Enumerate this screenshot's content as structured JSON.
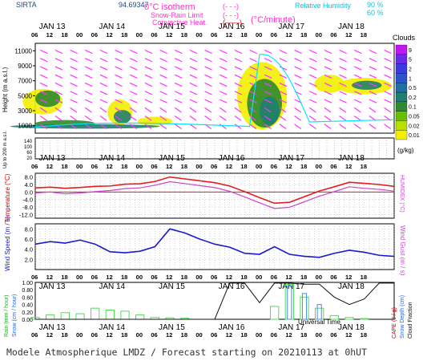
{
  "header": {
    "site": "SIRTA",
    "coords": "94.69347",
    "isotherm_label": "0°C isotherm",
    "isotherm_key": "(- - -)",
    "snow_rain_label": "Snow-Rain Limit",
    "snow_rain_key": "(- - -)",
    "convective_label": "Convective Heat.",
    "convective_key": "(——)",
    "convective_unit": "(°C/minute)",
    "rh_label": "Relative Humidity",
    "rh_90": "90 %",
    "rh_60": "60 %"
  },
  "footer": {
    "title": "Modele Atmospherique LMDZ / Forecast starting on 20210113 at 0hUT",
    "xaxis_title": "Universal Time"
  },
  "colors": {
    "cloud_yellow": "#f2f000",
    "cloud_green": "#2e8a2e",
    "cloud_teal": "#1f7f6e",
    "wind_arrow": "#ff33ff",
    "rh_line": "#00e5ff",
    "temp_line": "#e02020",
    "humidex_line": "#cc44cc",
    "wind_line": "#1a1acc",
    "rain_bar": "#55dd55",
    "snow_bar": "#4488ff",
    "cape_line": "#111111"
  },
  "chart_data": [
    {
      "type": "heatmap",
      "name": "clouds",
      "ylabel": "Height (m a.s.l.)",
      "ylabel2": "Up to 200 m a.s.l.",
      "yticks": [
        1000,
        3000,
        5000,
        7000,
        9000,
        11000
      ],
      "ylim": [
        0,
        12000
      ],
      "colorbar_title": "Clouds",
      "colorbar_unit": "(g/kg)",
      "colorbar_ticks": [
        "0.01",
        "0.02",
        "0.05",
        "0.1",
        "0.2",
        "0.5",
        "1",
        "2",
        "5",
        "9"
      ],
      "colorbar_colors": [
        "#f2f000",
        "#b7e000",
        "#67c000",
        "#2e8a2e",
        "#1f7f6e",
        "#1f6fa0",
        "#2a54c8",
        "#3a3ae0",
        "#6a2ae8",
        "#c018f0"
      ],
      "day_labels": [
        "JAN 13",
        "JAN 14",
        "JAN 15",
        "JAN 16",
        "JAN 17",
        "JAN 18"
      ],
      "hour_labels": [
        "06",
        "12",
        "18",
        "00",
        "06",
        "12",
        "18",
        "00",
        "06",
        "12",
        "18",
        "00",
        "06",
        "12",
        "18",
        "00",
        "06",
        "12",
        "18",
        "00",
        "06",
        "12",
        "18"
      ],
      "low_yticks": [
        "140",
        "100",
        "60",
        "20"
      ]
    },
    {
      "type": "line",
      "name": "temperature",
      "ylabel": "Temperature (°C)",
      "ylabel_right": "HUMIDEX (°C)",
      "yticks": [
        "8.0",
        "4.0",
        "0.0",
        "-4.0",
        "-8.0",
        "-12.0"
      ],
      "ylim": [
        -14,
        10
      ],
      "x": [
        0,
        6,
        12,
        18,
        24,
        30,
        36,
        42,
        48,
        54,
        60,
        66,
        72,
        78,
        84,
        90,
        96,
        102,
        108,
        114,
        120,
        126,
        132,
        138,
        144
      ],
      "series": [
        {
          "values": [
            2.2,
            2.6,
            2.0,
            2.4,
            3.0,
            3.2,
            4.2,
            4.4,
            5.6,
            8.0,
            7.0,
            6.0,
            5.0,
            3.2,
            0.2,
            -3.0,
            -6.0,
            -5.5,
            -2.5,
            0.5,
            2.8,
            5.2,
            4.6,
            4.0,
            3.0
          ]
        },
        {
          "values": [
            -0.5,
            0.0,
            -1.0,
            -0.5,
            0.2,
            0.8,
            1.8,
            2.2,
            3.6,
            5.5,
            4.5,
            3.4,
            2.4,
            0.4,
            -2.6,
            -5.8,
            -8.8,
            -8.2,
            -5.2,
            -2.2,
            0.2,
            2.8,
            2.0,
            1.4,
            0.5
          ]
        }
      ]
    },
    {
      "type": "line",
      "name": "wind",
      "ylabel": "Wind Speed (m / s)",
      "ylabel_right": "Wind Gust (m / s)",
      "yticks": [
        "8.0",
        "6.0",
        "4.0",
        "2.0"
      ],
      "ylim": [
        0,
        9
      ],
      "x": [
        0,
        6,
        12,
        18,
        24,
        30,
        36,
        42,
        48,
        54,
        60,
        66,
        72,
        78,
        84,
        90,
        96,
        102,
        108,
        114,
        120,
        126,
        132,
        138,
        144
      ],
      "series": [
        {
          "values": [
            5.0,
            5.5,
            5.2,
            5.8,
            5.0,
            3.5,
            3.3,
            3.6,
            4.5,
            8.0,
            7.2,
            6.0,
            5.0,
            4.4,
            3.2,
            3.0,
            4.5,
            3.0,
            2.6,
            2.4,
            3.2,
            3.8,
            3.4,
            2.8,
            2.6
          ]
        }
      ]
    },
    {
      "type": "bar",
      "name": "precipitation",
      "ylabel": "Rain (mm / hour)",
      "ylabel2": "Snow (cm / hour)",
      "ylabel_right": "CAPE (J / g)",
      "ylabel_right2": "Snow Depth (cm)",
      "ylabel_right3": "Cloud Fraction",
      "yticks": [
        "1.00",
        "0.80",
        "0.60",
        "0.40",
        "0.20",
        "0.00"
      ],
      "ylim": [
        0,
        1
      ],
      "rain": [
        0.05,
        0.12,
        0.18,
        0.15,
        0.3,
        0.25,
        0.22,
        0.12,
        0.05,
        0.04,
        0.03,
        0.0,
        0.0,
        0.0,
        0.0,
        0.0,
        0.35,
        0.95,
        0.6,
        0.3,
        0.1,
        0.05,
        0.02,
        0.0,
        0.0
      ],
      "snow": [
        0.0,
        0.0,
        0.0,
        0.0,
        0.0,
        0.0,
        0.0,
        0.0,
        0.0,
        0.0,
        0.0,
        0.0,
        0.0,
        0.0,
        0.0,
        0.0,
        0.0,
        0.9,
        0.7,
        0.4,
        0.0,
        0.0,
        0.0,
        0.0,
        0.0
      ],
      "cloud_fraction": [
        0.0,
        0.0,
        0.0,
        0.0,
        0.0,
        0.0,
        0.0,
        0.0,
        0.0,
        0.0,
        0.0,
        0.0,
        0.0,
        0.98,
        0.98,
        0.45,
        0.98,
        0.98,
        0.95,
        0.95,
        0.6,
        0.4,
        0.55,
        0.98,
        0.98
      ]
    }
  ]
}
